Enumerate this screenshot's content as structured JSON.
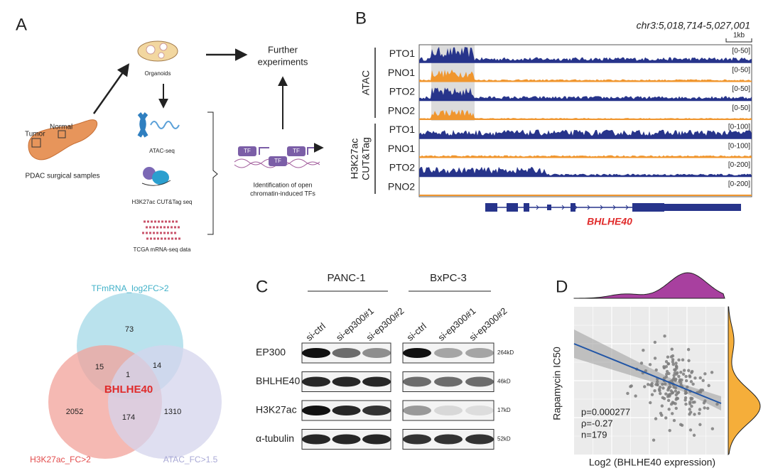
{
  "panel_a": {
    "label": "A",
    "tumor": "Tumor",
    "normal": "Normal",
    "samples": "PDAC surgical samples",
    "organoids": "Organoids",
    "atac": "ATAC-seq",
    "cuttag": "H3K27ac CUT&Tag seq",
    "tcga": "TCGA mRNA-seq data",
    "further": [
      "Further",
      "experiments"
    ],
    "tf": "TF",
    "identification": [
      "Identification of open",
      "chromatin-induced TFs"
    ]
  },
  "panel_b": {
    "label": "B",
    "locus": "chr3:5,018,714-5,027,001",
    "scale": "1kb",
    "gene": "BHLHE40",
    "groups": [
      {
        "name": [
          "ATAC"
        ],
        "tracks": [
          {
            "name": "PTO1",
            "range": "[0-50]",
            "color": "#27348b"
          },
          {
            "name": "PNO1",
            "range": "[0-50]",
            "color": "#f0962e"
          },
          {
            "name": "PTO2",
            "range": "[0-50]",
            "color": "#27348b"
          },
          {
            "name": "PNO2",
            "range": "[0-50]",
            "color": "#f0962e"
          }
        ]
      },
      {
        "name": [
          "H3K27ac",
          "CUT&Tag"
        ],
        "tracks": [
          {
            "name": "PTO1",
            "range": "[0-100]",
            "color": "#27348b"
          },
          {
            "name": "PNO1",
            "range": "[0-100]",
            "color": "#f0962e"
          },
          {
            "name": "PTO2",
            "range": "[0-200]",
            "color": "#27348b"
          },
          {
            "name": "PNO2",
            "range": "[0-200]",
            "color": "#f0962e"
          }
        ]
      }
    ]
  },
  "venn": {
    "sets": [
      "TFmRNA_log2FC>2",
      "H3K27ac_FC>2",
      "ATAC_FC>1.5"
    ],
    "counts": [
      73,
      15,
      1,
      14,
      2052,
      174,
      1310
    ],
    "center": "BHLHE40"
  },
  "panel_c": {
    "label": "C",
    "cell_lines": [
      {
        "name": "PANC-1",
        "lanes": [
          "si-ctrl",
          "si-ep300#1",
          "si-ep300#2"
        ]
      },
      {
        "name": "BxPC-3",
        "lanes": [
          "si-ctrl",
          "si-ep300#1",
          "si-ep300#2"
        ]
      }
    ],
    "blots": [
      {
        "protein": "EP300",
        "size": "264kD"
      },
      {
        "protein": "BHLHE40",
        "size": "46kD"
      },
      {
        "protein": "H3K27ac",
        "size": "17kD"
      },
      {
        "protein": "α-tubulin",
        "size": "52kD"
      }
    ]
  },
  "panel_d": {
    "label": "D",
    "ylabel": "Rapamycin IC50",
    "xlabel": "Log2 (BHLHE40 expression)",
    "stats": [
      "p=0.000277",
      "ρ=-0.27",
      "n=179"
    ]
  }
}
